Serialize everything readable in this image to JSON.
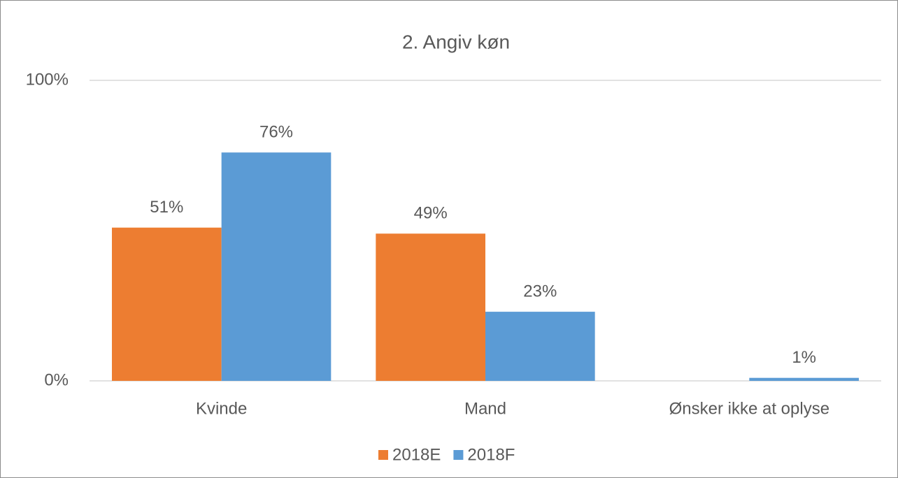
{
  "chart_data": {
    "type": "bar",
    "title": "2. Angiv køn",
    "categories": [
      "Kvinde",
      "Mand",
      "Ønsker ikke at oplyse"
    ],
    "series": [
      {
        "name": "2018E",
        "color": "#ed7d31",
        "values": [
          51,
          49,
          null
        ],
        "value_labels": [
          "51%",
          "49%",
          null
        ]
      },
      {
        "name": "2018F",
        "color": "#5b9bd5",
        "values": [
          76,
          23,
          1
        ],
        "value_labels": [
          "76%",
          "23%",
          "1%"
        ]
      }
    ],
    "ylim": [
      0,
      100
    ],
    "yticks": [
      {
        "value": 0,
        "label": "0%"
      },
      {
        "value": 100,
        "label": "100%"
      }
    ],
    "grid": true,
    "legend": "bottom"
  }
}
